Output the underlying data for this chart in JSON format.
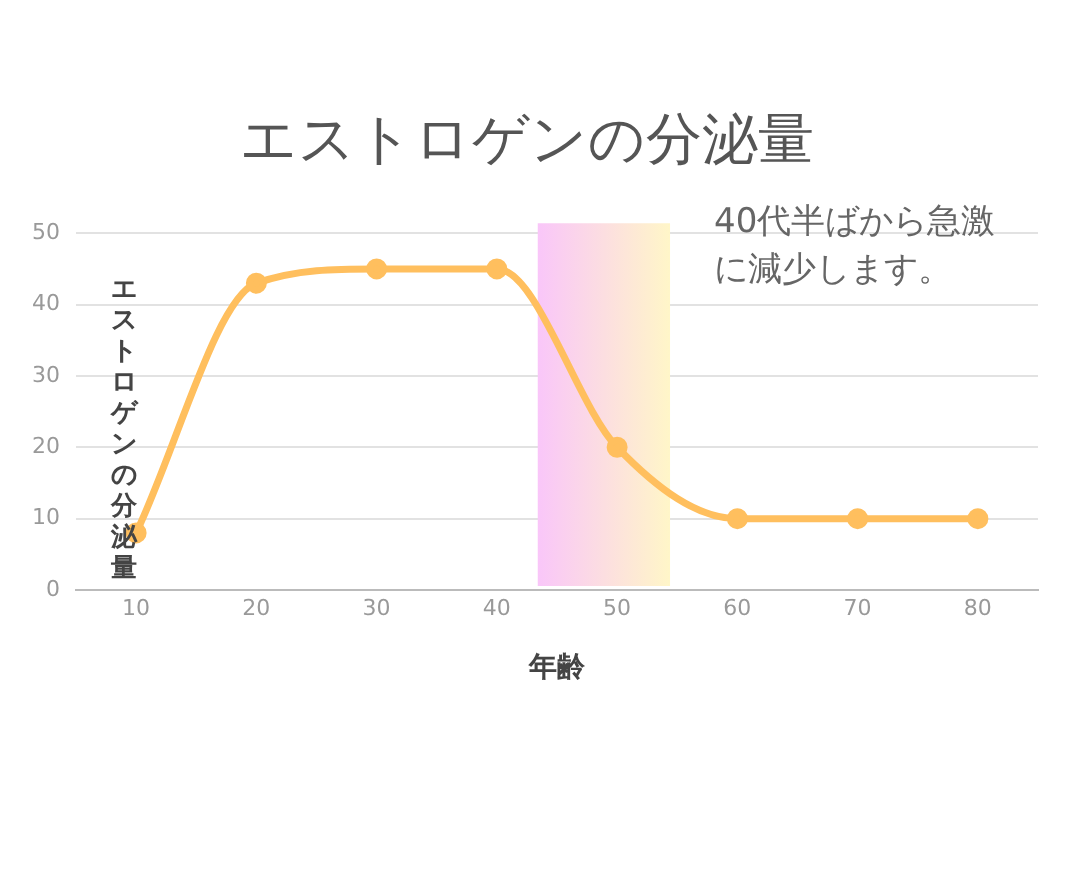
{
  "chart_data": {
    "type": "line",
    "title": "エストロゲンの分泌量",
    "xlabel": "年齢",
    "ylabel": "エストロゲンの分泌量",
    "x": [
      10,
      20,
      30,
      40,
      50,
      60,
      70,
      80
    ],
    "series": [
      {
        "color": "#ffbf5e",
        "values": [
          8,
          43,
          45,
          45,
          20,
          10,
          10,
          10
        ]
      }
    ],
    "xlim": [
      5,
      85
    ],
    "xticks": [
      10,
      20,
      30,
      40,
      50,
      60,
      70,
      80
    ],
    "ylim": [
      0,
      50
    ],
    "yticks": [
      0,
      10,
      20,
      30,
      40,
      50
    ],
    "bands": [
      {
        "axis": "x",
        "from": 43.4,
        "to": 54.4,
        "color": "#f9c6f9"
      }
    ],
    "annotations": [
      "40代半ばから急激に減少します。"
    ],
    "grid": "y",
    "legend": false,
    "marker": "circle",
    "line_style": "solid"
  }
}
